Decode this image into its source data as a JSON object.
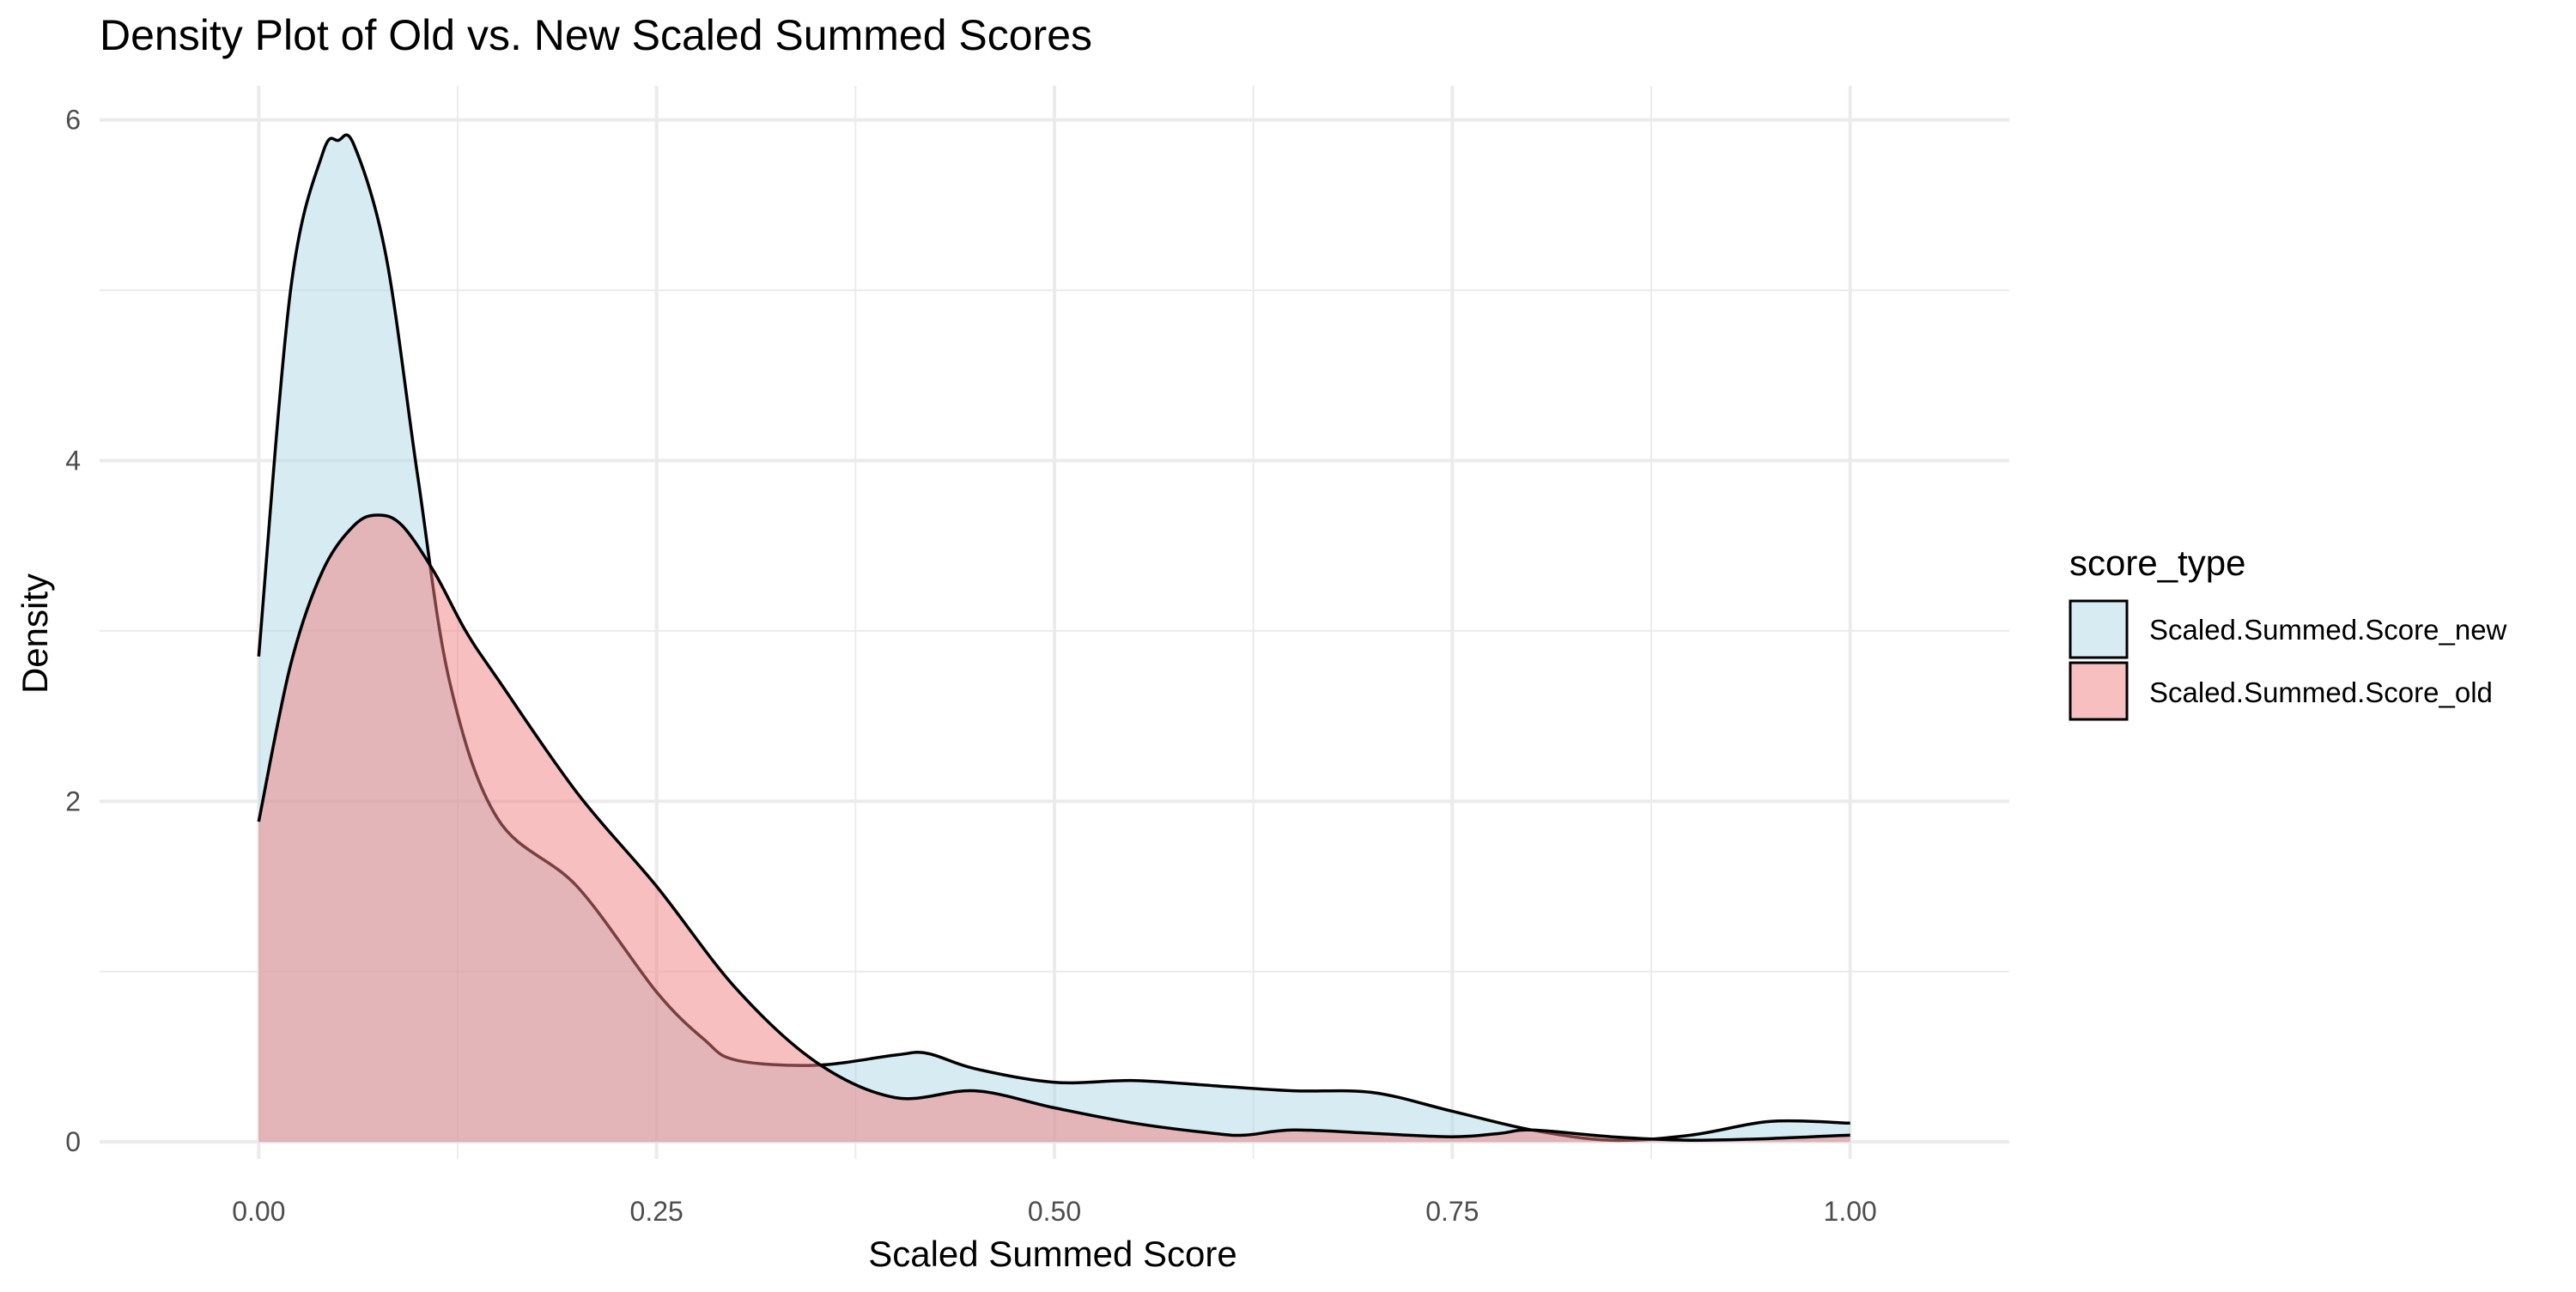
{
  "chart_data": {
    "type": "area",
    "title": "Density Plot of Old vs. New Scaled Summed Scores",
    "xlabel": "Scaled Summed Score",
    "ylabel": "Density",
    "xlim": [
      -0.1,
      1.1
    ],
    "ylim": [
      -0.1,
      6.2
    ],
    "x_ticks": [
      0,
      0.25,
      0.5,
      0.75,
      1.0
    ],
    "x_tick_labels": [
      "0.00",
      "0.25",
      "0.50",
      "0.75",
      "1.00"
    ],
    "y_ticks": [
      0,
      2,
      4,
      6
    ],
    "y_tick_labels": [
      "0",
      "2",
      "4",
      "6"
    ],
    "grid": true,
    "legend": {
      "title": "score_type",
      "position": "right"
    },
    "series": [
      {
        "name": "Scaled.Summed.Score_new",
        "fill": "#add8e6",
        "x": [
          0,
          0.02,
          0.04,
          0.05,
          0.06,
          0.08,
          0.1,
          0.12,
          0.15,
          0.2,
          0.25,
          0.28,
          0.3,
          0.35,
          0.4,
          0.42,
          0.45,
          0.5,
          0.55,
          0.6,
          0.65,
          0.7,
          0.75,
          0.8,
          0.85,
          0.9,
          0.95,
          1.0
        ],
        "values": [
          2.85,
          5.0,
          5.8,
          5.88,
          5.85,
          5.2,
          3.9,
          2.7,
          1.9,
          1.5,
          0.88,
          0.6,
          0.48,
          0.45,
          0.51,
          0.52,
          0.43,
          0.35,
          0.36,
          0.33,
          0.3,
          0.29,
          0.18,
          0.07,
          0.01,
          0.04,
          0.12,
          0.11
        ]
      },
      {
        "name": "Scaled.Summed.Score_old",
        "fill": "#f08080",
        "x": [
          0,
          0.02,
          0.04,
          0.06,
          0.075,
          0.09,
          0.11,
          0.13,
          0.15,
          0.2,
          0.25,
          0.3,
          0.35,
          0.4,
          0.45,
          0.5,
          0.55,
          0.6,
          0.62,
          0.65,
          0.7,
          0.75,
          0.78,
          0.8,
          0.85,
          0.9,
          0.95,
          1.0
        ],
        "values": [
          1.88,
          2.8,
          3.35,
          3.62,
          3.68,
          3.62,
          3.35,
          3.0,
          2.72,
          2.05,
          1.5,
          0.9,
          0.47,
          0.26,
          0.3,
          0.2,
          0.11,
          0.05,
          0.04,
          0.07,
          0.05,
          0.03,
          0.05,
          0.07,
          0.03,
          0.01,
          0.02,
          0.04
        ]
      }
    ]
  }
}
